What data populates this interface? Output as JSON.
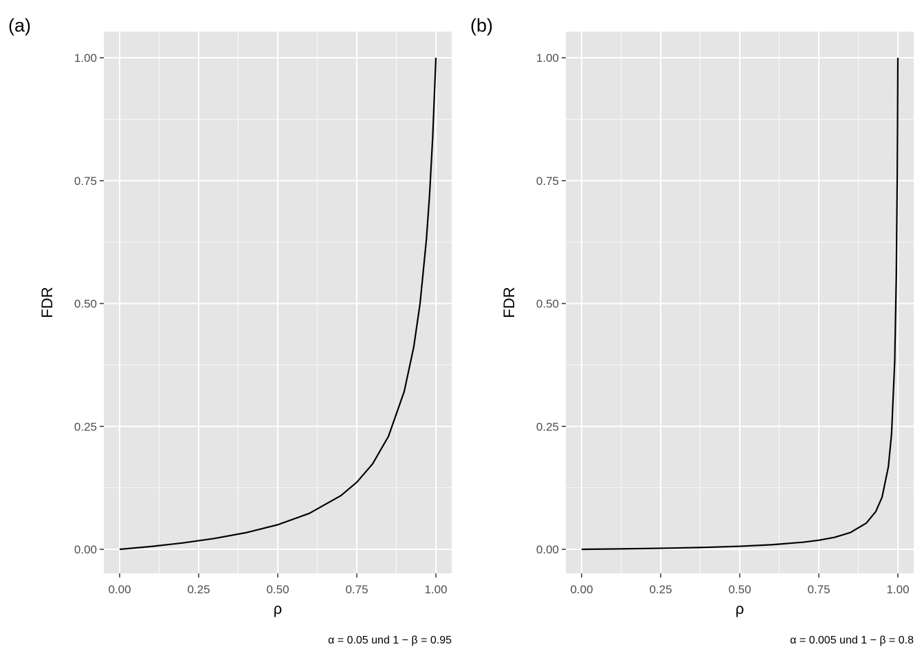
{
  "chart_data": [
    {
      "type": "line",
      "tag": "(a)",
      "xlabel": "ρ",
      "ylabel": "FDR",
      "caption": "α = 0.05 und 1 − β = 0.95",
      "xlim": [
        0,
        1
      ],
      "ylim": [
        0,
        1
      ],
      "xticks": [
        "0.00",
        "0.25",
        "0.50",
        "0.75",
        "1.00"
      ],
      "yticks": [
        "0.00",
        "0.25",
        "0.50",
        "0.75",
        "1.00"
      ],
      "grid": true,
      "background": "#e5e5e5",
      "line_color": "#000000",
      "x": [
        0,
        0.1,
        0.2,
        0.3,
        0.4,
        0.5,
        0.6,
        0.7,
        0.75,
        0.8,
        0.85,
        0.9,
        0.93,
        0.95,
        0.97,
        0.98,
        0.99,
        1
      ],
      "y": [
        0,
        0.0058,
        0.013,
        0.0221,
        0.0339,
        0.05,
        0.0732,
        0.1094,
        0.1364,
        0.1739,
        0.2297,
        0.3214,
        0.4115,
        0.5,
        0.6299,
        0.7206,
        0.839,
        1
      ]
    },
    {
      "type": "line",
      "tag": "(b)",
      "xlabel": "ρ",
      "ylabel": "FDR",
      "caption": "α = 0.005 und 1 − β = 0.8",
      "xlim": [
        0,
        1
      ],
      "ylim": [
        0,
        1
      ],
      "xticks": [
        "0.00",
        "0.25",
        "0.50",
        "0.75",
        "1.00"
      ],
      "yticks": [
        "0.00",
        "0.25",
        "0.50",
        "0.75",
        "1.00"
      ],
      "grid": true,
      "background": "#e5e5e5",
      "line_color": "#000000",
      "x": [
        0,
        0.1,
        0.2,
        0.3,
        0.4,
        0.5,
        0.6,
        0.7,
        0.75,
        0.8,
        0.85,
        0.9,
        0.93,
        0.95,
        0.97,
        0.98,
        0.99,
        0.995,
        0.998,
        0.999,
        1
      ],
      "y": [
        0,
        0.0007,
        0.0016,
        0.0027,
        0.0041,
        0.0062,
        0.0093,
        0.0144,
        0.0184,
        0.0244,
        0.0342,
        0.0533,
        0.0767,
        0.1061,
        0.1681,
        0.2344,
        0.3822,
        0.5543,
        0.7572,
        0.862,
        1
      ]
    }
  ]
}
